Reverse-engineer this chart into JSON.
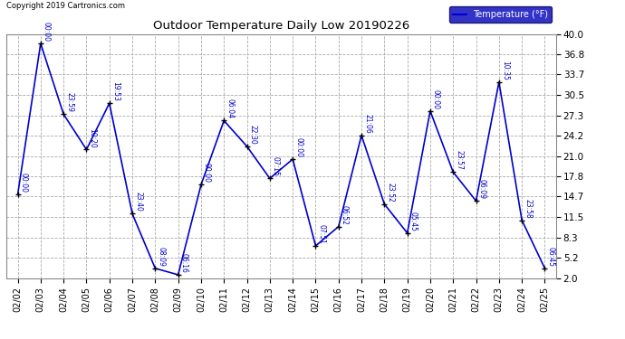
{
  "title": "Outdoor Temperature Daily Low 20190226",
  "copyright_text": "Copyright 2019 Cartronics.com",
  "legend_label": "Temperature (°F)",
  "dates": [
    "02/02",
    "02/03",
    "02/04",
    "02/05",
    "02/06",
    "02/07",
    "02/08",
    "02/09",
    "02/10",
    "02/11",
    "02/12",
    "02/13",
    "02/14",
    "02/15",
    "02/16",
    "02/17",
    "02/18",
    "02/19",
    "02/20",
    "02/21",
    "02/22",
    "02/23",
    "02/24",
    "02/25"
  ],
  "values": [
    15.0,
    38.5,
    27.5,
    22.0,
    29.2,
    12.0,
    3.5,
    2.5,
    16.5,
    26.5,
    22.5,
    17.5,
    20.5,
    7.0,
    10.0,
    24.2,
    13.5,
    9.0,
    28.0,
    18.5,
    14.0,
    32.5,
    11.0,
    3.5
  ],
  "time_labels": [
    "00:00",
    "00:00",
    "23:59",
    "10:20",
    "19:53",
    "23:40",
    "08:09",
    "06:16",
    "00:00",
    "06:04",
    "22:30",
    "07:15",
    "00:00",
    "07:51",
    "06:52",
    "21:06",
    "23:52",
    "05:45",
    "00:00",
    "23:57",
    "06:09",
    "10:35",
    "23:58",
    "06:45"
  ],
  "line_color": "#0000cc",
  "marker_color": "#000000",
  "background_color": "#ffffff",
  "grid_color": "#aaaaaa",
  "ylim": [
    2.0,
    40.0
  ],
  "yticks": [
    2.0,
    5.2,
    8.3,
    11.5,
    14.7,
    17.8,
    21.0,
    24.2,
    27.3,
    30.5,
    33.7,
    36.8,
    40.0
  ],
  "legend_bg": "#0000bb",
  "legend_fg": "#ffffff",
  "fig_width": 6.9,
  "fig_height": 3.75,
  "dpi": 100
}
